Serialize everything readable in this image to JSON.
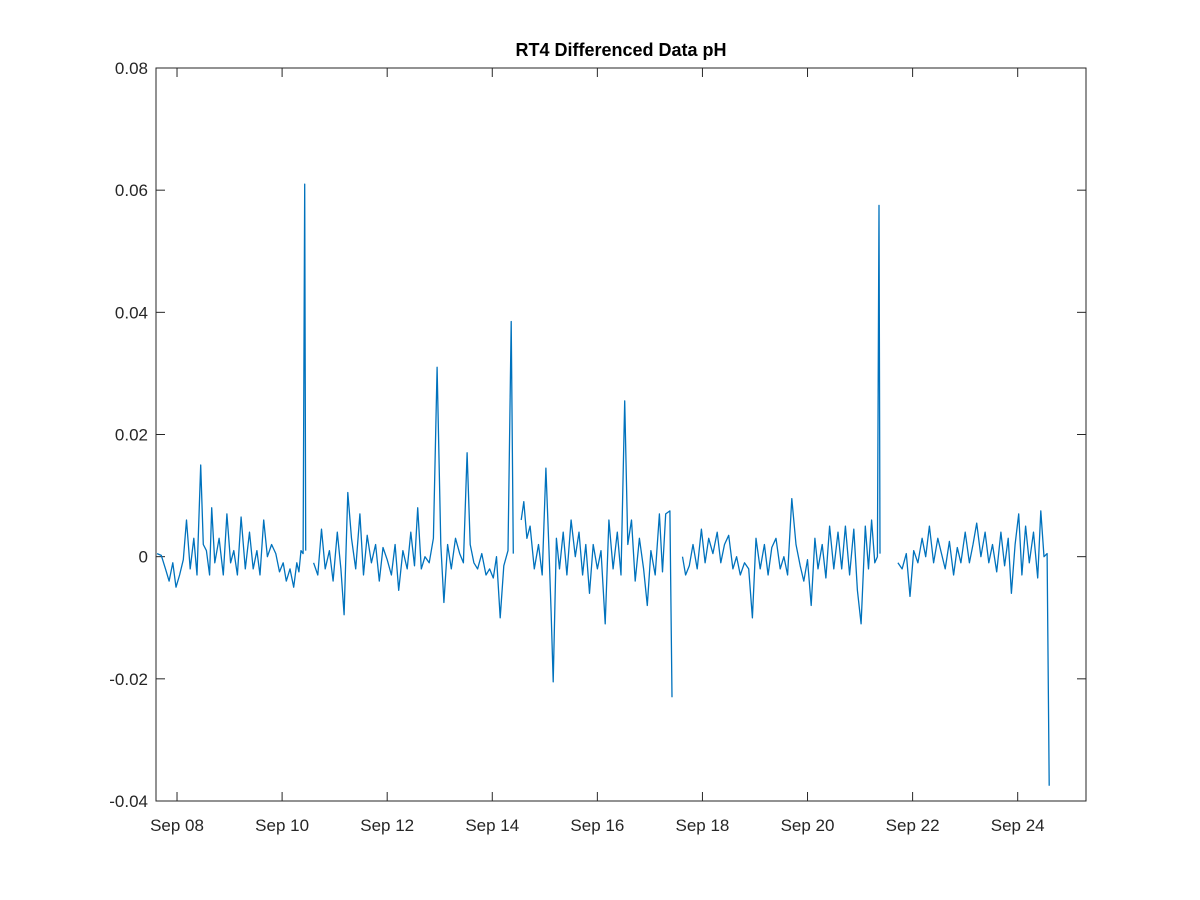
{
  "chart_data": {
    "type": "line",
    "title": "RT4 Differenced Data pH",
    "xlabel": "",
    "ylabel": "",
    "x_tick_labels": [
      "Sep 08",
      "Sep 10",
      "Sep 12",
      "Sep 14",
      "Sep 16",
      "Sep 18",
      "Sep 20",
      "Sep 22",
      "Sep 24"
    ],
    "x_tick_days": [
      8,
      10,
      12,
      14,
      16,
      18,
      20,
      22,
      24
    ],
    "xlim": [
      7.6,
      25.3
    ],
    "ylim": [
      -0.04,
      0.08
    ],
    "y_ticks": [
      -0.04,
      -0.02,
      0,
      0.02,
      0.04,
      0.06,
      0.08
    ],
    "y_tick_labels": [
      "-0.04",
      "-0.02",
      "0",
      "0.02",
      "0.04",
      "0.06",
      "0.08"
    ],
    "grid": false,
    "series_color": "#0072BD",
    "series": [
      {
        "name": "",
        "segments": [
          [
            [
              7.62,
              0.0005
            ],
            [
              7.7,
              0.0002
            ],
            [
              7.78,
              -0.002
            ],
            [
              7.85,
              -0.004
            ],
            [
              7.92,
              -0.001
            ],
            [
              7.98,
              -0.005
            ],
            [
              8.05,
              -0.003
            ],
            [
              8.12,
              -0.0005
            ],
            [
              8.18,
              0.006
            ],
            [
              8.25,
              -0.002
            ],
            [
              8.32,
              0.003
            ],
            [
              8.38,
              -0.003
            ],
            [
              8.45,
              0.015
            ],
            [
              8.5,
              0.002
            ],
            [
              8.56,
              0.001
            ],
            [
              8.62,
              -0.003
            ],
            [
              8.66,
              0.008
            ],
            [
              8.72,
              -0.001
            ],
            [
              8.8,
              0.003
            ],
            [
              8.88,
              -0.003
            ],
            [
              8.95,
              0.007
            ],
            [
              9.02,
              -0.001
            ],
            [
              9.08,
              0.001
            ],
            [
              9.15,
              -0.003
            ],
            [
              9.22,
              0.0065
            ],
            [
              9.3,
              -0.002
            ],
            [
              9.38,
              0.004
            ],
            [
              9.45,
              -0.002
            ],
            [
              9.52,
              0.001
            ],
            [
              9.58,
              -0.003
            ],
            [
              9.65,
              0.006
            ],
            [
              9.72,
              0.0
            ],
            [
              9.8,
              0.002
            ],
            [
              9.88,
              0.0005
            ],
            [
              9.95,
              -0.0025
            ],
            [
              10.02,
              -0.001
            ],
            [
              10.08,
              -0.004
            ],
            [
              10.15,
              -0.002
            ],
            [
              10.22,
              -0.005
            ],
            [
              10.28,
              -0.001
            ],
            [
              10.32,
              -0.0025
            ],
            [
              10.36,
              0.001
            ],
            [
              10.4,
              0.0005
            ],
            [
              10.43,
              0.061
            ],
            [
              10.45,
              0.001
            ]
          ],
          [
            [
              10.6,
              -0.001
            ],
            [
              10.68,
              -0.003
            ],
            [
              10.75,
              0.0045
            ],
            [
              10.82,
              -0.002
            ],
            [
              10.9,
              0.001
            ],
            [
              10.97,
              -0.004
            ],
            [
              11.05,
              0.004
            ],
            [
              11.12,
              -0.002
            ],
            [
              11.18,
              -0.0095
            ],
            [
              11.25,
              0.0105
            ],
            [
              11.32,
              0.003
            ],
            [
              11.4,
              -0.002
            ],
            [
              11.48,
              0.007
            ],
            [
              11.55,
              -0.003
            ],
            [
              11.62,
              0.0035
            ],
            [
              11.7,
              -0.001
            ],
            [
              11.78,
              0.002
            ],
            [
              11.85,
              -0.004
            ],
            [
              11.92,
              0.0015
            ],
            [
              12.0,
              -0.0005
            ],
            [
              12.08,
              -0.003
            ],
            [
              12.15,
              0.002
            ],
            [
              12.22,
              -0.0055
            ],
            [
              12.3,
              0.001
            ],
            [
              12.38,
              -0.002
            ],
            [
              12.45,
              0.004
            ],
            [
              12.52,
              -0.0015
            ],
            [
              12.58,
              0.008
            ],
            [
              12.65,
              -0.002
            ],
            [
              12.72,
              0.0
            ],
            [
              12.8,
              -0.001
            ],
            [
              12.88,
              0.003
            ],
            [
              12.95,
              0.031
            ],
            [
              13.02,
              0.002
            ],
            [
              13.08,
              -0.0075
            ],
            [
              13.15,
              0.002
            ],
            [
              13.22,
              -0.002
            ],
            [
              13.3,
              0.003
            ],
            [
              13.38,
              0.0005
            ],
            [
              13.45,
              -0.001
            ],
            [
              13.52,
              0.017
            ],
            [
              13.58,
              0.002
            ],
            [
              13.65,
              -0.001
            ],
            [
              13.72,
              -0.002
            ],
            [
              13.8,
              0.0005
            ],
            [
              13.88,
              -0.003
            ],
            [
              13.95,
              -0.002
            ],
            [
              14.02,
              -0.0035
            ],
            [
              14.08,
              0.0
            ],
            [
              14.15,
              -0.01
            ],
            [
              14.22,
              -0.0015
            ],
            [
              14.3,
              0.001
            ],
            [
              14.36,
              0.0385
            ],
            [
              14.4,
              0.0005
            ]
          ],
          [
            [
              14.55,
              0.006
            ],
            [
              14.6,
              0.009
            ],
            [
              14.66,
              0.003
            ],
            [
              14.72,
              0.005
            ],
            [
              14.8,
              -0.002
            ],
            [
              14.88,
              0.002
            ],
            [
              14.95,
              -0.003
            ],
            [
              15.02,
              0.0145
            ],
            [
              15.08,
              0.001
            ],
            [
              15.12,
              -0.009
            ],
            [
              15.16,
              -0.0205
            ],
            [
              15.22,
              0.003
            ],
            [
              15.28,
              -0.002
            ],
            [
              15.35,
              0.004
            ],
            [
              15.42,
              -0.003
            ],
            [
              15.5,
              0.006
            ],
            [
              15.58,
              0.0
            ],
            [
              15.65,
              0.004
            ],
            [
              15.72,
              -0.003
            ],
            [
              15.78,
              0.002
            ],
            [
              15.85,
              -0.006
            ],
            [
              15.92,
              0.002
            ],
            [
              16.0,
              -0.002
            ],
            [
              16.07,
              0.001
            ],
            [
              16.15,
              -0.011
            ],
            [
              16.22,
              0.006
            ],
            [
              16.3,
              -0.002
            ],
            [
              16.38,
              0.004
            ],
            [
              16.45,
              -0.003
            ],
            [
              16.52,
              0.0255
            ],
            [
              16.58,
              0.002
            ],
            [
              16.65,
              0.006
            ],
            [
              16.72,
              -0.004
            ],
            [
              16.8,
              0.003
            ],
            [
              16.88,
              -0.002
            ],
            [
              16.95,
              -0.008
            ],
            [
              17.02,
              0.001
            ],
            [
              17.1,
              -0.003
            ],
            [
              17.18,
              0.007
            ],
            [
              17.24,
              -0.0025
            ],
            [
              17.3,
              0.007
            ],
            [
              17.38,
              0.0075
            ],
            [
              17.42,
              -0.023
            ]
          ],
          [
            [
              17.62,
              0.0
            ],
            [
              17.68,
              -0.003
            ],
            [
              17.75,
              -0.0015
            ],
            [
              17.82,
              0.002
            ],
            [
              17.9,
              -0.002
            ],
            [
              17.98,
              0.0045
            ],
            [
              18.05,
              -0.001
            ],
            [
              18.12,
              0.003
            ],
            [
              18.2,
              0.0005
            ],
            [
              18.28,
              0.004
            ],
            [
              18.35,
              -0.001
            ],
            [
              18.42,
              0.002
            ],
            [
              18.5,
              0.0035
            ],
            [
              18.58,
              -0.002
            ],
            [
              18.65,
              0.0
            ],
            [
              18.72,
              -0.003
            ],
            [
              18.8,
              -0.001
            ],
            [
              18.88,
              -0.002
            ],
            [
              18.95,
              -0.01
            ],
            [
              19.02,
              0.003
            ],
            [
              19.1,
              -0.002
            ],
            [
              19.18,
              0.002
            ],
            [
              19.25,
              -0.003
            ],
            [
              19.32,
              0.0015
            ],
            [
              19.4,
              0.003
            ],
            [
              19.48,
              -0.002
            ],
            [
              19.55,
              0.0
            ],
            [
              19.62,
              -0.003
            ],
            [
              19.7,
              0.0095
            ],
            [
              19.78,
              0.002
            ],
            [
              19.86,
              -0.0015
            ],
            [
              19.93,
              -0.004
            ],
            [
              20.0,
              -0.0005
            ],
            [
              20.07,
              -0.008
            ],
            [
              20.14,
              0.003
            ],
            [
              20.2,
              -0.002
            ],
            [
              20.28,
              0.002
            ],
            [
              20.35,
              -0.0035
            ],
            [
              20.42,
              0.005
            ],
            [
              20.5,
              -0.002
            ],
            [
              20.58,
              0.004
            ],
            [
              20.65,
              -0.002
            ],
            [
              20.72,
              0.005
            ],
            [
              20.8,
              -0.003
            ],
            [
              20.88,
              0.0045
            ],
            [
              20.95,
              -0.0055
            ],
            [
              21.02,
              -0.011
            ],
            [
              21.1,
              0.005
            ],
            [
              21.16,
              -0.002
            ],
            [
              21.22,
              0.006
            ],
            [
              21.28,
              -0.001
            ],
            [
              21.33,
              0.0
            ],
            [
              21.36,
              0.0575
            ],
            [
              21.38,
              0.0005
            ]
          ],
          [
            [
              21.72,
              -0.001
            ],
            [
              21.8,
              -0.002
            ],
            [
              21.88,
              0.0005
            ],
            [
              21.95,
              -0.0065
            ],
            [
              22.02,
              0.001
            ],
            [
              22.1,
              -0.001
            ],
            [
              22.18,
              0.003
            ],
            [
              22.25,
              0.0
            ],
            [
              22.32,
              0.005
            ],
            [
              22.4,
              -0.001
            ],
            [
              22.48,
              0.003
            ],
            [
              22.55,
              0.0005
            ],
            [
              22.62,
              -0.002
            ],
            [
              22.7,
              0.0025
            ],
            [
              22.78,
              -0.003
            ],
            [
              22.85,
              0.0015
            ],
            [
              22.92,
              -0.001
            ],
            [
              23.0,
              0.004
            ],
            [
              23.08,
              -0.001
            ],
            [
              23.15,
              0.002
            ],
            [
              23.22,
              0.0055
            ],
            [
              23.3,
              0.0
            ],
            [
              23.38,
              0.004
            ],
            [
              23.45,
              -0.001
            ],
            [
              23.52,
              0.002
            ],
            [
              23.6,
              -0.0025
            ],
            [
              23.68,
              0.004
            ],
            [
              23.75,
              -0.0015
            ],
            [
              23.82,
              0.003
            ],
            [
              23.88,
              -0.006
            ],
            [
              23.95,
              0.002
            ],
            [
              24.02,
              0.007
            ],
            [
              24.08,
              -0.003
            ],
            [
              24.15,
              0.005
            ],
            [
              24.22,
              -0.001
            ],
            [
              24.3,
              0.004
            ],
            [
              24.38,
              -0.0035
            ],
            [
              24.44,
              0.0075
            ],
            [
              24.5,
              0.0
            ],
            [
              24.56,
              0.0005
            ],
            [
              24.6,
              -0.0375
            ]
          ]
        ]
      }
    ]
  }
}
